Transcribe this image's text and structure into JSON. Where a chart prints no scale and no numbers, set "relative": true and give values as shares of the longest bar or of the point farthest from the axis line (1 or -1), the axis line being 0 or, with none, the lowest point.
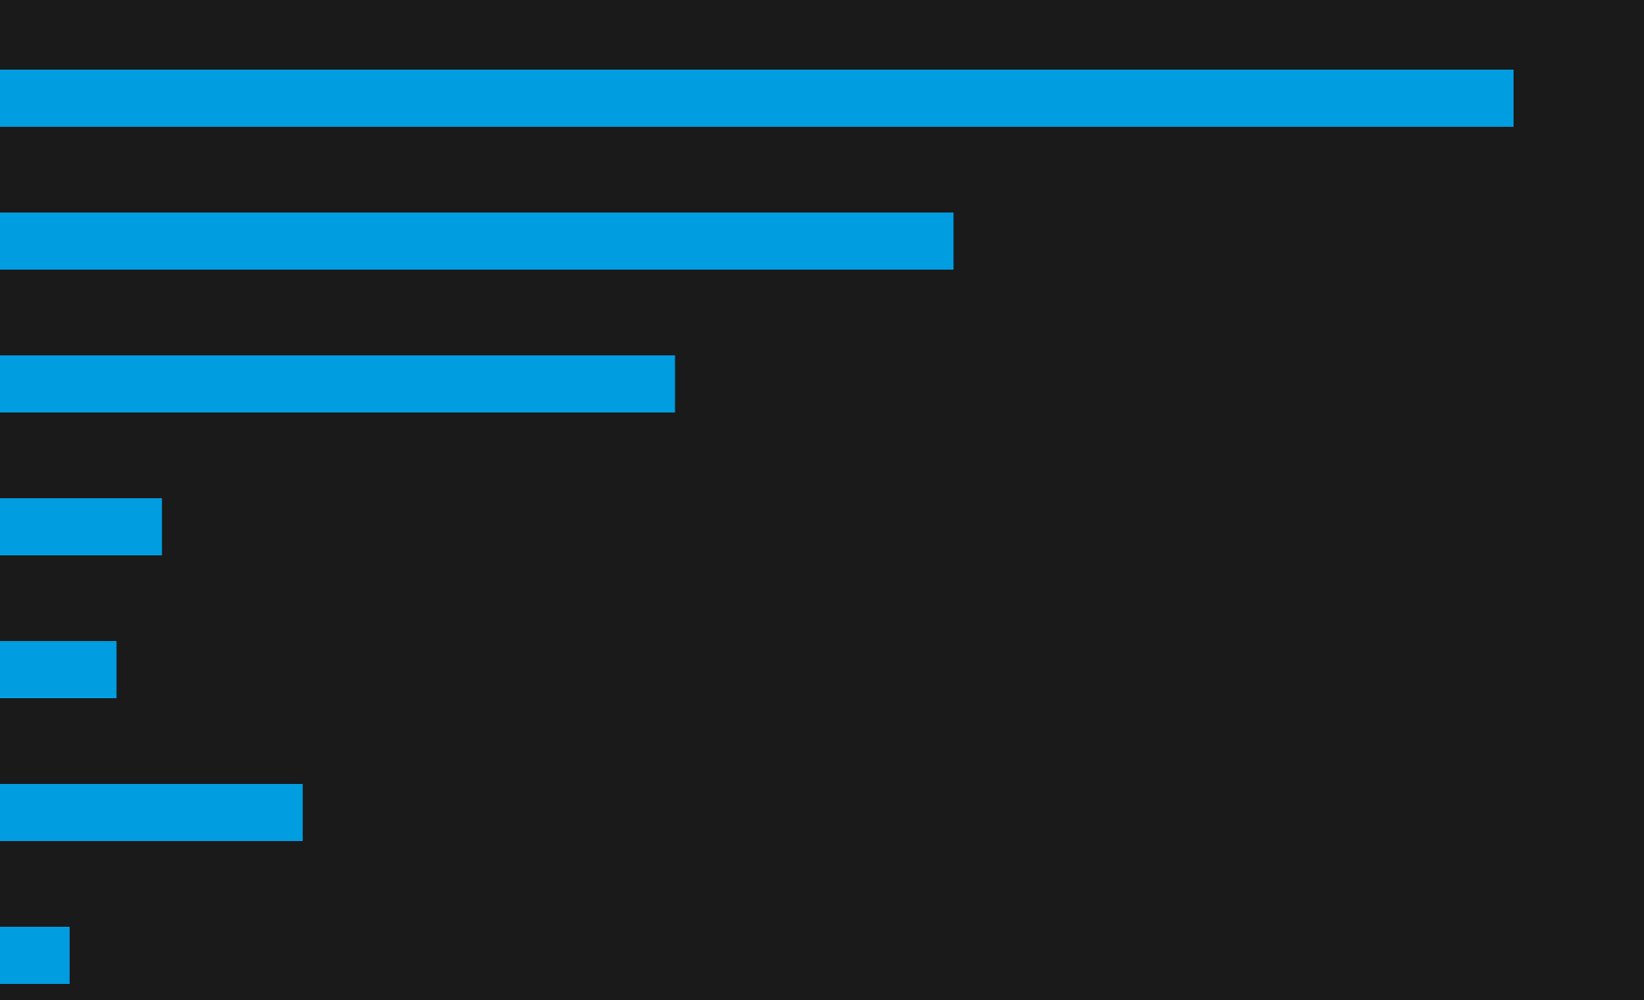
{
  "chart_data": {
    "type": "bar",
    "orientation": "horizontal",
    "relative": true,
    "categories": [
      null,
      null,
      null,
      null,
      null,
      null,
      null
    ],
    "values": [
      1,
      0.63,
      0.446,
      0.107,
      0.077,
      0.2,
      0.046
    ],
    "color": "#009de0",
    "grid": false,
    "legend": false
  }
}
